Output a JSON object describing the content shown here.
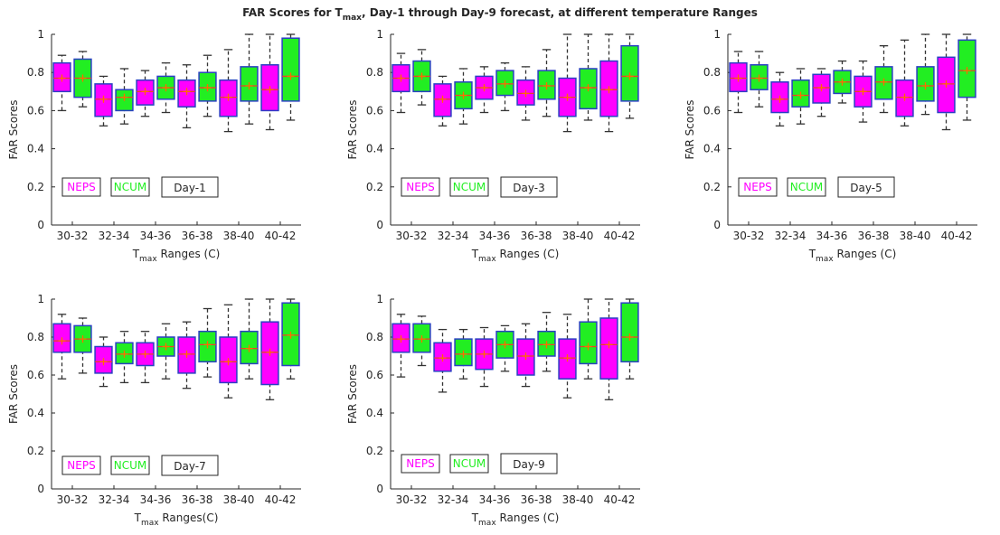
{
  "title": [
    "FAR Scores for T",
    "max",
    ", Day-1 through Day-9 forecast, at different temperature Ranges"
  ],
  "chart_data": [
    {
      "type": "box",
      "panel_label": "Day-1",
      "ylabel": "FAR Scores",
      "xlabel": [
        "T",
        "max",
        " Ranges (C)"
      ],
      "categories": [
        "30-32",
        "32-34",
        "34-36",
        "36-38",
        "38-40",
        "40-42"
      ],
      "ylim": [
        0,
        1
      ],
      "yticks": [
        0,
        0.2,
        0.4,
        0.6,
        0.8,
        1
      ],
      "series": [
        {
          "name": "NEPS",
          "color": "#ff00ff",
          "whislo": [
            0.6,
            0.52,
            0.57,
            0.51,
            0.49,
            0.5
          ],
          "q1": [
            0.7,
            0.57,
            0.63,
            0.62,
            0.57,
            0.6
          ],
          "median": [
            0.77,
            0.66,
            0.7,
            0.7,
            0.67,
            0.71
          ],
          "q3": [
            0.85,
            0.74,
            0.76,
            0.76,
            0.76,
            0.84
          ],
          "whishi": [
            0.89,
            0.78,
            0.81,
            0.84,
            0.92,
            1.0
          ],
          "mean": [
            0.77,
            0.66,
            0.7,
            0.7,
            0.67,
            0.71
          ]
        },
        {
          "name": "NCUM",
          "color": "#22ee22",
          "whislo": [
            0.62,
            0.53,
            0.59,
            0.57,
            0.53,
            0.55
          ],
          "q1": [
            0.67,
            0.6,
            0.66,
            0.65,
            0.65,
            0.65
          ],
          "median": [
            0.77,
            0.67,
            0.72,
            0.72,
            0.73,
            0.78
          ],
          "q3": [
            0.87,
            0.71,
            0.78,
            0.8,
            0.83,
            0.98
          ],
          "whishi": [
            0.91,
            0.82,
            0.85,
            0.89,
            1.0,
            1.0
          ],
          "mean": [
            0.77,
            0.67,
            0.72,
            0.72,
            0.73,
            0.78
          ]
        }
      ]
    },
    {
      "type": "box",
      "panel_label": "Day-3",
      "ylabel": "FAR Scores",
      "xlabel": [
        "T",
        "max",
        " Ranges (C)"
      ],
      "categories": [
        "30-32",
        "32-34",
        "34-36",
        "36-38",
        "38-40",
        "40-42"
      ],
      "ylim": [
        0,
        1
      ],
      "yticks": [
        0,
        0.2,
        0.4,
        0.6,
        0.8,
        1
      ],
      "series": [
        {
          "name": "NEPS",
          "color": "#ff00ff",
          "whislo": [
            0.59,
            0.52,
            0.59,
            0.55,
            0.49,
            0.49
          ],
          "q1": [
            0.7,
            0.57,
            0.66,
            0.63,
            0.57,
            0.57
          ],
          "median": [
            0.77,
            0.66,
            0.72,
            0.69,
            0.67,
            0.71
          ],
          "q3": [
            0.84,
            0.74,
            0.78,
            0.76,
            0.77,
            0.86
          ],
          "whishi": [
            0.9,
            0.78,
            0.83,
            0.83,
            1.0,
            1.0
          ],
          "mean": [
            0.77,
            0.66,
            0.72,
            0.69,
            0.67,
            0.71
          ]
        },
        {
          "name": "NCUM",
          "color": "#22ee22",
          "whislo": [
            0.63,
            0.53,
            0.6,
            0.57,
            0.55,
            0.56
          ],
          "q1": [
            0.7,
            0.61,
            0.68,
            0.66,
            0.61,
            0.65
          ],
          "median": [
            0.78,
            0.68,
            0.74,
            0.73,
            0.72,
            0.78
          ],
          "q3": [
            0.86,
            0.75,
            0.81,
            0.81,
            0.82,
            0.94
          ],
          "whishi": [
            0.92,
            0.82,
            0.85,
            0.92,
            1.0,
            1.0
          ],
          "mean": [
            0.78,
            0.68,
            0.74,
            0.73,
            0.72,
            0.78
          ]
        }
      ]
    },
    {
      "type": "box",
      "panel_label": "Day-5",
      "ylabel": "FAR Scores",
      "xlabel": [
        "T",
        "max",
        " Ranges (C)"
      ],
      "categories": [
        "30-32",
        "32-34",
        "34-36",
        "36-38",
        "38-40",
        "40-42"
      ],
      "ylim": [
        0,
        1
      ],
      "yticks": [
        0,
        0.2,
        0.4,
        0.6,
        0.8,
        1
      ],
      "series": [
        {
          "name": "NEPS",
          "color": "#ff00ff",
          "whislo": [
            0.59,
            0.52,
            0.57,
            0.54,
            0.52,
            0.5
          ],
          "q1": [
            0.7,
            0.59,
            0.64,
            0.62,
            0.57,
            0.59
          ],
          "median": [
            0.77,
            0.66,
            0.72,
            0.7,
            0.67,
            0.74
          ],
          "q3": [
            0.85,
            0.75,
            0.79,
            0.78,
            0.76,
            0.88
          ],
          "whishi": [
            0.91,
            0.8,
            0.82,
            0.86,
            0.97,
            1.0
          ],
          "mean": [
            0.77,
            0.66,
            0.72,
            0.7,
            0.67,
            0.74
          ]
        },
        {
          "name": "NCUM",
          "color": "#22ee22",
          "whislo": [
            0.62,
            0.53,
            0.64,
            0.59,
            0.58,
            0.55
          ],
          "q1": [
            0.71,
            0.62,
            0.69,
            0.66,
            0.65,
            0.67
          ],
          "median": [
            0.77,
            0.68,
            0.75,
            0.75,
            0.73,
            0.81
          ],
          "q3": [
            0.84,
            0.76,
            0.81,
            0.83,
            0.83,
            0.97
          ],
          "whishi": [
            0.91,
            0.82,
            0.86,
            0.94,
            1.0,
            1.0
          ],
          "mean": [
            0.77,
            0.68,
            0.75,
            0.75,
            0.73,
            0.81
          ]
        }
      ]
    },
    {
      "type": "box",
      "panel_label": "Day-7",
      "ylabel": "FAR Scores",
      "xlabel": [
        "T",
        "max",
        " Ranges(C)"
      ],
      "categories": [
        "30-32",
        "32-34",
        "34-36",
        "36-38",
        "38-40",
        "40-42"
      ],
      "ylim": [
        0,
        1
      ],
      "yticks": [
        0,
        0.2,
        0.4,
        0.6,
        0.8,
        1
      ],
      "series": [
        {
          "name": "NEPS",
          "color": "#ff00ff",
          "whislo": [
            0.58,
            0.54,
            0.56,
            0.53,
            0.48,
            0.47
          ],
          "q1": [
            0.72,
            0.61,
            0.65,
            0.61,
            0.56,
            0.55
          ],
          "median": [
            0.78,
            0.67,
            0.71,
            0.71,
            0.67,
            0.72
          ],
          "q3": [
            0.87,
            0.75,
            0.77,
            0.8,
            0.8,
            0.88
          ],
          "whishi": [
            0.92,
            0.8,
            0.83,
            0.88,
            0.97,
            1.0
          ],
          "mean": [
            0.78,
            0.67,
            0.71,
            0.71,
            0.67,
            0.72
          ]
        },
        {
          "name": "NCUM",
          "color": "#22ee22",
          "whislo": [
            0.61,
            0.56,
            0.58,
            0.59,
            0.58,
            0.58
          ],
          "q1": [
            0.72,
            0.66,
            0.7,
            0.67,
            0.66,
            0.65
          ],
          "median": [
            0.79,
            0.71,
            0.75,
            0.76,
            0.74,
            0.81
          ],
          "q3": [
            0.86,
            0.77,
            0.8,
            0.83,
            0.83,
            0.98
          ],
          "whishi": [
            0.9,
            0.83,
            0.87,
            0.95,
            1.0,
            1.0
          ],
          "mean": [
            0.79,
            0.71,
            0.75,
            0.76,
            0.74,
            0.81
          ]
        }
      ]
    },
    {
      "type": "box",
      "panel_label": "Day-9",
      "ylabel": "FAR Scores",
      "xlabel": [
        "T",
        "max",
        " Ranges (C)"
      ],
      "categories": [
        "30-32",
        "32-34",
        "34-36",
        "36-38",
        "38-40",
        "40-42"
      ],
      "ylim": [
        0,
        1
      ],
      "yticks": [
        0,
        0.2,
        0.4,
        0.6,
        0.8,
        1
      ],
      "series": [
        {
          "name": "NEPS",
          "color": "#ff00ff",
          "whislo": [
            0.59,
            0.51,
            0.54,
            0.54,
            0.48,
            0.47
          ],
          "q1": [
            0.72,
            0.62,
            0.63,
            0.6,
            0.58,
            0.58
          ],
          "median": [
            0.79,
            0.69,
            0.71,
            0.7,
            0.69,
            0.76
          ],
          "q3": [
            0.87,
            0.77,
            0.79,
            0.79,
            0.79,
            0.9
          ],
          "whishi": [
            0.92,
            0.84,
            0.85,
            0.87,
            0.92,
            1.0
          ],
          "mean": [
            0.79,
            0.69,
            0.71,
            0.7,
            0.69,
            0.76
          ]
        },
        {
          "name": "NCUM",
          "color": "#22ee22",
          "whislo": [
            0.65,
            0.58,
            0.62,
            0.62,
            0.58,
            0.58
          ],
          "q1": [
            0.72,
            0.65,
            0.69,
            0.7,
            0.66,
            0.67
          ],
          "median": [
            0.79,
            0.71,
            0.76,
            0.76,
            0.75,
            0.8
          ],
          "q3": [
            0.87,
            0.79,
            0.83,
            0.83,
            0.88,
            0.98
          ],
          "whishi": [
            0.91,
            0.84,
            0.86,
            0.93,
            1.0,
            1.0
          ],
          "mean": [
            0.79,
            0.71,
            0.76,
            0.76,
            0.75,
            0.8
          ]
        }
      ]
    }
  ]
}
